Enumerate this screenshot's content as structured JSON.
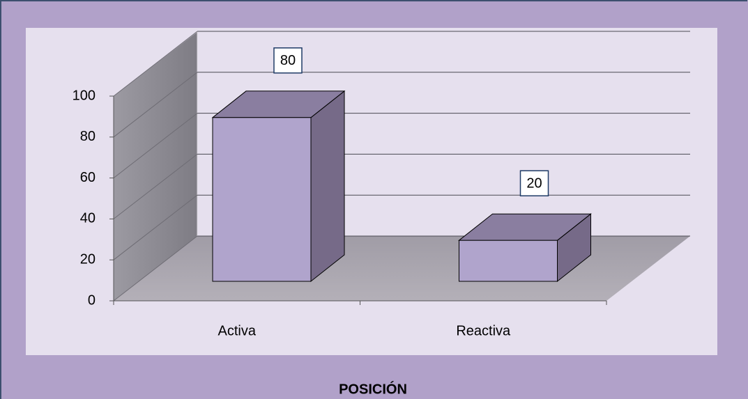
{
  "chart_data": {
    "type": "bar3d",
    "title": "POSICIÓN",
    "categories": [
      "Activa",
      "Reactiva"
    ],
    "values": [
      80,
      20
    ],
    "color": "#b0a4cc",
    "ylim": [
      0,
      100
    ],
    "yticks": [
      0,
      20,
      40,
      60,
      80,
      100
    ],
    "grid": true
  }
}
